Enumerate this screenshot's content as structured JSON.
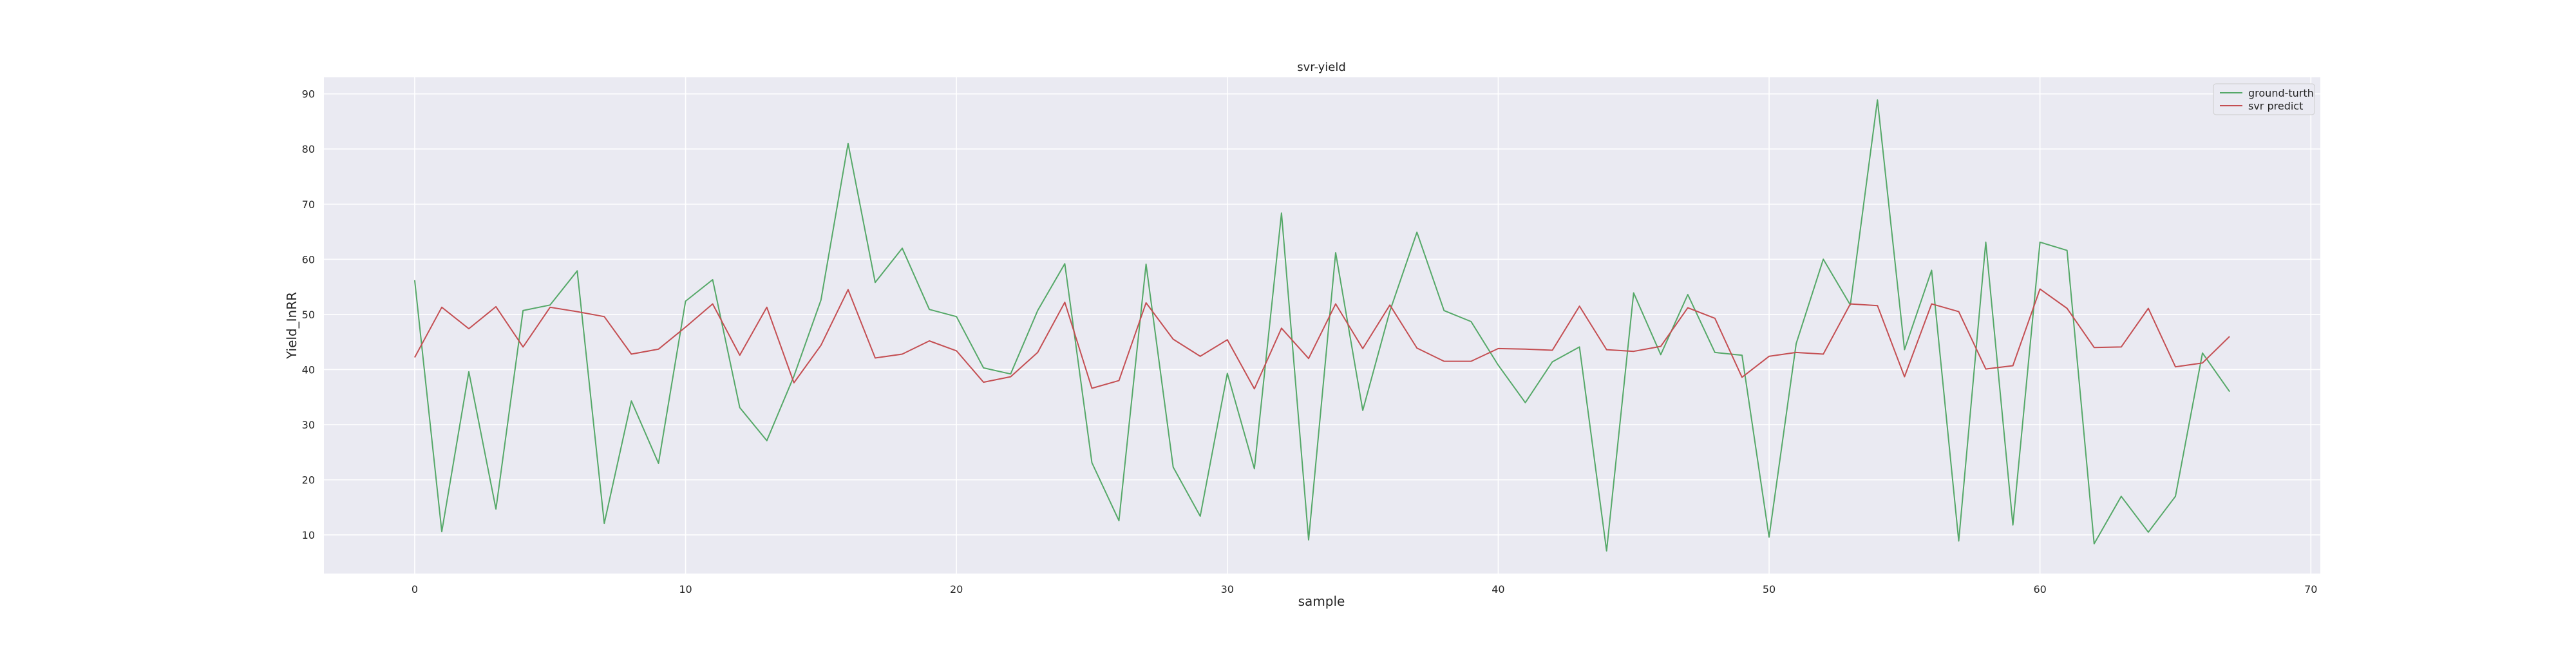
{
  "chart_data": {
    "type": "line",
    "title": "svr-yield",
    "xlabel": "sample",
    "ylabel": "Yield_InRR",
    "xlim": [
      -3.35,
      70.35
    ],
    "ylim": [
      3.0,
      93.0
    ],
    "x_ticks": [
      0,
      10,
      20,
      30,
      40,
      50,
      60,
      70
    ],
    "y_ticks": [
      10,
      20,
      30,
      40,
      50,
      60,
      70,
      80,
      90
    ],
    "grid": true,
    "legend_position": "top-right",
    "background": "#EAEAF2",
    "series": [
      {
        "name": "ground-turth",
        "color": "#55A868",
        "x": [
          0,
          1,
          2,
          3,
          4,
          5,
          6,
          7,
          8,
          9,
          10,
          11,
          12,
          13,
          14,
          15,
          16,
          17,
          18,
          19,
          20,
          21,
          22,
          23,
          24,
          25,
          26,
          27,
          28,
          29,
          30,
          31,
          32,
          33,
          34,
          35,
          36,
          37,
          38,
          39,
          40,
          41,
          42,
          43,
          44,
          45,
          46,
          47,
          48,
          49,
          50,
          51,
          52,
          53,
          54,
          55,
          56,
          57,
          58,
          59,
          60,
          61,
          62,
          63,
          64,
          65,
          66,
          67
        ],
        "values": [
          56.2,
          10.6,
          39.6,
          14.7,
          50.7,
          51.7,
          57.9,
          12.1,
          34.3,
          23.0,
          52.4,
          56.3,
          33.1,
          27.1,
          38.8,
          52.6,
          81.0,
          55.8,
          62.0,
          50.9,
          49.6,
          40.3,
          39.2,
          50.7,
          59.2,
          23.1,
          12.6,
          59.1,
          22.3,
          13.4,
          39.3,
          22.0,
          68.4,
          9.1,
          61.2,
          32.6,
          50.6,
          64.9,
          50.7,
          48.7,
          40.8,
          34.0,
          41.4,
          44.1,
          7.1,
          53.9,
          42.7,
          53.6,
          43.1,
          42.6,
          9.6,
          44.7,
          60.0,
          51.7,
          88.9,
          43.6,
          58.0,
          8.9,
          63.1,
          11.8,
          63.1,
          61.6,
          8.4,
          17.0,
          10.5,
          17.0,
          43.0,
          36.0
        ]
      },
      {
        "name": "svr predict",
        "color": "#C44E52",
        "x": [
          0,
          1,
          2,
          3,
          4,
          5,
          6,
          7,
          8,
          9,
          10,
          11,
          12,
          13,
          14,
          15,
          16,
          17,
          18,
          19,
          20,
          21,
          22,
          23,
          24,
          25,
          26,
          27,
          28,
          29,
          30,
          31,
          32,
          33,
          34,
          35,
          36,
          37,
          38,
          39,
          40,
          41,
          42,
          43,
          44,
          45,
          46,
          47,
          48,
          49,
          50,
          51,
          52,
          53,
          54,
          55,
          56,
          57,
          58,
          59,
          60,
          61,
          62,
          63,
          64,
          65,
          66,
          67
        ],
        "values": [
          42.2,
          51.3,
          47.4,
          51.4,
          44.1,
          51.3,
          50.5,
          49.6,
          42.8,
          43.7,
          47.7,
          51.9,
          42.6,
          51.3,
          37.6,
          44.4,
          54.5,
          42.1,
          42.8,
          45.2,
          43.4,
          37.7,
          38.7,
          43.1,
          52.2,
          36.6,
          38.0,
          52.1,
          45.5,
          42.4,
          45.4,
          36.5,
          47.5,
          42.0,
          51.9,
          43.8,
          51.7,
          43.9,
          41.5,
          41.5,
          43.8,
          43.7,
          43.5,
          51.5,
          43.6,
          43.3,
          44.2,
          51.2,
          49.3,
          38.6,
          42.4,
          43.1,
          42.8,
          51.9,
          51.6,
          38.7,
          51.9,
          50.5,
          40.1,
          40.7,
          54.6,
          51.1,
          44.0,
          44.1,
          51.1,
          40.5,
          41.2,
          46.0
        ]
      }
    ]
  }
}
